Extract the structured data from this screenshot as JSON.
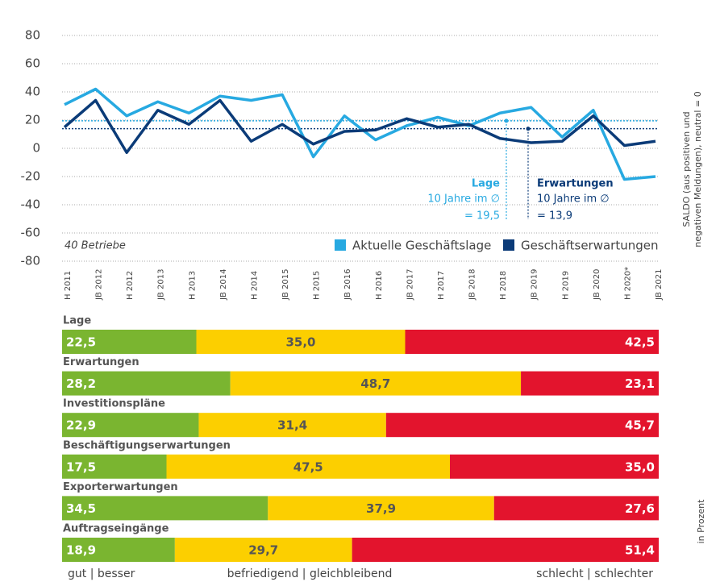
{
  "chart_data": [
    {
      "type": "line",
      "categories": [
        "H 2011",
        "JB 2012",
        "H 2012",
        "JB 2013",
        "H 2013",
        "JB 2014",
        "H 2014",
        "JB 2015",
        "H 2015",
        "JB 2016",
        "H 2016",
        "JB 2017",
        "H 2017",
        "JB 2018",
        "H 2018",
        "JB 2019",
        "H 2019",
        "JB 2020",
        "H 2020*",
        "JB 2021"
      ],
      "series": [
        {
          "name": "Aktuelle Geschäftslage",
          "color": "#27a9e1",
          "values": [
            31,
            42,
            23,
            33,
            25,
            37,
            34,
            38,
            -6,
            23,
            6,
            16,
            22,
            16,
            25,
            29,
            8,
            27,
            -22,
            -20
          ]
        },
        {
          "name": "Geschäftserwartungen",
          "color": "#0b3b78",
          "values": [
            15,
            34,
            -3,
            27,
            17,
            34,
            5,
            17,
            3,
            12,
            13,
            21,
            15,
            17,
            7,
            4,
            5,
            23,
            2,
            5
          ]
        }
      ],
      "ylim": [
        -80,
        80
      ],
      "yticks": [
        -80,
        -60,
        -40,
        -20,
        0,
        20,
        40,
        60,
        80
      ],
      "grid": true,
      "legend": "lower right",
      "y_label": [
        "SALDO (aus positiven und",
        "negativen Meldungen), neutral = 0"
      ],
      "note": "40 Betriebe",
      "annotations": [
        {
          "title": "Lage",
          "text": "10 Jahre im ∅",
          "value": 19.5,
          "value_label": "= 19,5",
          "color": "#27a9e1"
        },
        {
          "title": "Erwartungen",
          "text": "10 Jahre im ∅",
          "value": 13.9,
          "value_label": "= 13,9",
          "color": "#0b3b78"
        }
      ]
    },
    {
      "type": "bar",
      "categories": [
        "Lage",
        "Erwartungen",
        "Investitionspläne",
        "Beschäftigungserwartungen",
        "Exporterwartungen",
        "Auftragseingänge"
      ],
      "series": [
        {
          "name": "gut | besser",
          "color": "#7ab530",
          "values": [
            22.5,
            28.2,
            22.9,
            17.5,
            34.5,
            18.9
          ],
          "value_labels": [
            "22,5",
            "28,2",
            "22,9",
            "17,5",
            "34,5",
            "18,9"
          ]
        },
        {
          "name": "befriedigend | gleichbleibend",
          "color": "#fccf00",
          "values": [
            35.0,
            48.7,
            31.4,
            47.5,
            37.9,
            29.7
          ],
          "value_labels": [
            "35,0",
            "48,7",
            "31,4",
            "47,5",
            "37,9",
            "29,7"
          ]
        },
        {
          "name": "schlecht | schlechter",
          "color": "#e3142d",
          "values": [
            42.5,
            23.1,
            45.7,
            35.0,
            27.6,
            51.4
          ],
          "value_labels": [
            "42,5",
            "23,1",
            "45,7",
            "35,0",
            "27,6",
            "51,4"
          ]
        }
      ],
      "xlim": [
        0,
        100
      ],
      "unit_label": "in Prozent"
    }
  ]
}
